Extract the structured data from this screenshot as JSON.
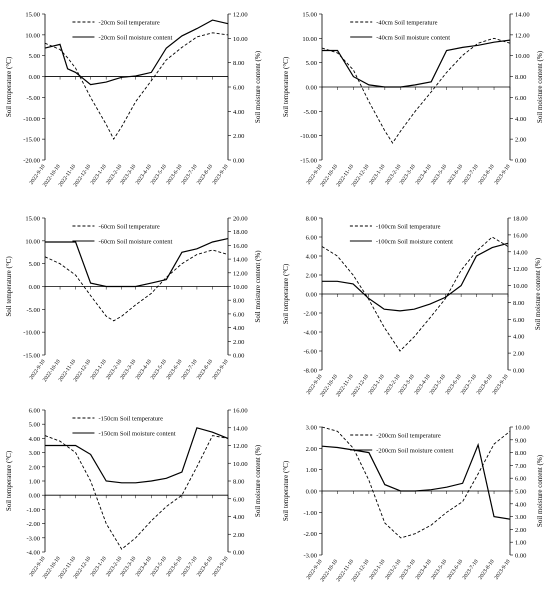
{
  "x_dates": [
    "2022-9-10",
    "2022-10-10",
    "2022-11-10",
    "2022-12-10",
    "2023-1-10",
    "2023-2-10",
    "2023-3-10",
    "2023-4-10",
    "2023-5-10",
    "2023-6-10",
    "2023-7-10",
    "2023-8-10",
    "2023-9-10"
  ],
  "chart_data": [
    {
      "type": "line",
      "depth": "20cm",
      "legend": [
        "-20cm Soil temperature",
        "-20cm Soil moisture content"
      ],
      "ylabel": "Soil temperature (°C)",
      "y2label": "Soil moisture content (%)",
      "ylim": [
        -20,
        15
      ],
      "y2lim": [
        0,
        12
      ],
      "yticks": [
        "15.00",
        "10.00",
        "5.00",
        "0.00",
        "-5.00",
        "-10.00",
        "-15.00",
        "-20.00"
      ],
      "y2ticks": [
        "12.00",
        "10.00",
        "8.00",
        "6.00",
        "4.00",
        "2.00",
        "0.00"
      ],
      "x": [
        "2022-9-10",
        "2022-10-10",
        "2022-10-25",
        "2022-11-10",
        "2022-12-10",
        "2023-1-10",
        "2023-1-25",
        "2023-2-10",
        "2023-3-10",
        "2023-4-10",
        "2023-5-10",
        "2023-6-10",
        "2023-7-10",
        "2023-8-10",
        "2023-9-10"
      ],
      "series": [
        {
          "name": "-20cm Soil temperature",
          "style": "dashed",
          "values": [
            8.0,
            6.5,
            4.5,
            2.0,
            -5.0,
            -11.5,
            -15.0,
            -12.0,
            -6.0,
            -1.0,
            4.0,
            7.0,
            9.5,
            10.5,
            10.0
          ]
        },
        {
          "name": "-20cm Soil moisture content",
          "style": "solid",
          "axis": "right",
          "values": [
            9.2,
            9.5,
            7.5,
            7.2,
            6.2,
            6.4,
            6.6,
            6.8,
            6.9,
            7.2,
            9.2,
            10.2,
            10.8,
            11.5,
            11.2
          ]
        }
      ]
    },
    {
      "type": "line",
      "depth": "40cm",
      "legend": [
        "-40cm Soil temperature",
        "-40cm Soil moisture content"
      ],
      "ylabel": "Soil temperature (°C)",
      "y2label": "Soil moisture content (%)",
      "ylim": [
        -15,
        15
      ],
      "y2lim": [
        0,
        14
      ],
      "yticks": [
        "15.00",
        "10.00",
        "5.00",
        "0.00",
        "-5.00",
        "-10.00",
        "-15.00"
      ],
      "y2ticks": [
        "14.00",
        "12.00",
        "10.00",
        "8.00",
        "6.00",
        "4.00",
        "2.00",
        "0.00"
      ],
      "x": [
        "2022-9-10",
        "2022-10-10",
        "2022-11-10",
        "2022-12-10",
        "2023-1-10",
        "2023-1-25",
        "2023-2-10",
        "2023-3-10",
        "2023-4-10",
        "2023-5-10",
        "2023-6-10",
        "2023-7-10",
        "2023-8-10",
        "2023-9-10"
      ],
      "series": [
        {
          "name": "-40cm Soil temperature",
          "style": "dashed",
          "values": [
            8.0,
            7.0,
            3.5,
            -3.0,
            -9.0,
            -11.5,
            -9.0,
            -5.0,
            -1.0,
            3.0,
            6.5,
            9.0,
            10.0,
            9.0
          ]
        },
        {
          "name": "-40cm Soil moisture content",
          "style": "solid",
          "axis": "right",
          "values": [
            10.5,
            10.5,
            8.0,
            7.2,
            7.0,
            7.0,
            7.0,
            7.2,
            7.5,
            10.5,
            10.8,
            11.0,
            11.3,
            11.5
          ]
        }
      ]
    },
    {
      "type": "line",
      "depth": "60cm",
      "legend": [
        "-60cm Soil temperature",
        "-60cm Soil moisture content"
      ],
      "ylabel": "Soil temperature (°C)",
      "y2label": "Soil moisture content (%)",
      "ylim": [
        -15,
        15
      ],
      "y2lim": [
        0,
        20
      ],
      "yticks": [
        "15.00",
        "10.00",
        "5.00",
        "0.00",
        "-5.00",
        "-10.00",
        "-15.00"
      ],
      "y2ticks": [
        "20.00",
        "18.00",
        "16.00",
        "14.00",
        "12.00",
        "10.00",
        "8.00",
        "6.00",
        "4.00",
        "2.00",
        "0.00"
      ],
      "x": [
        "2022-9-10",
        "2022-10-10",
        "2022-11-10",
        "2022-12-10",
        "2023-1-10",
        "2023-1-25",
        "2023-2-10",
        "2023-3-10",
        "2023-4-10",
        "2023-5-10",
        "2023-6-10",
        "2023-7-10",
        "2023-8-10",
        "2023-9-10"
      ],
      "series": [
        {
          "name": "-60cm Soil temperature",
          "style": "dashed",
          "values": [
            6.5,
            5.0,
            2.5,
            -2.0,
            -6.5,
            -7.5,
            -6.5,
            -4.0,
            -1.5,
            2.0,
            5.0,
            7.0,
            8.0,
            7.0
          ]
        },
        {
          "name": "-60cm Soil moisture content",
          "style": "solid",
          "axis": "right",
          "values": [
            16.5,
            16.5,
            16.5,
            10.5,
            10.0,
            10.0,
            10.0,
            10.0,
            10.5,
            11.0,
            15.0,
            15.5,
            16.5,
            17.0
          ]
        }
      ]
    },
    {
      "type": "line",
      "depth": "100cm",
      "legend": [
        "-100cm Soil temperature",
        "-100cm Soil moisture content"
      ],
      "ylabel": "Soil temperature (°C)",
      "y2label": "Soil moisture content (%)",
      "ylim": [
        -8,
        8
      ],
      "y2lim": [
        0,
        18
      ],
      "yticks": [
        "8.00",
        "6.00",
        "4.00",
        "2.00",
        "0.00",
        "-2.00",
        "-4.00",
        "-6.00",
        "-8.00"
      ],
      "y2ticks": [
        "18.00",
        "16.00",
        "14.00",
        "12.00",
        "10.00",
        "8.00",
        "6.00",
        "4.00",
        "2.00",
        "0.00"
      ],
      "x": [
        "2022-9-10",
        "2022-10-10",
        "2022-11-10",
        "2022-12-10",
        "2023-1-10",
        "2023-2-10",
        "2023-3-10",
        "2023-4-10",
        "2023-5-10",
        "2023-6-10",
        "2023-7-10",
        "2023-8-10",
        "2023-9-10"
      ],
      "series": [
        {
          "name": "-100cm Soil temperature",
          "style": "dashed",
          "values": [
            5.0,
            4.0,
            2.0,
            -0.5,
            -3.5,
            -6.0,
            -4.5,
            -2.5,
            -0.5,
            2.5,
            4.5,
            6.0,
            5.0
          ]
        },
        {
          "name": "-100cm Soil moisture content",
          "style": "solid",
          "axis": "right",
          "values": [
            10.5,
            10.5,
            10.2,
            8.5,
            7.2,
            7.0,
            7.2,
            7.8,
            8.6,
            10.0,
            13.5,
            14.5,
            15.0
          ]
        }
      ]
    },
    {
      "type": "line",
      "depth": "150cm",
      "legend": [
        "-150cm Soil temperature",
        "-150cm Soil moisture content"
      ],
      "ylabel": "Soil temperature (°C)",
      "y2label": "Soil moisture content (%)",
      "ylim": [
        -4,
        6
      ],
      "y2lim": [
        0,
        16
      ],
      "yticks": [
        "6.00",
        "5.00",
        "4.00",
        "3.00",
        "2.00",
        "1.00",
        "0.00",
        "-1.00",
        "-2.00",
        "-3.00",
        "-4.00"
      ],
      "y2ticks": [
        "16.00",
        "14.00",
        "12.00",
        "10.00",
        "8.00",
        "6.00",
        "4.00",
        "2.00",
        "0.00"
      ],
      "x": [
        "2022-9-10",
        "2022-10-10",
        "2022-11-10",
        "2022-12-10",
        "2023-1-10",
        "2023-2-10",
        "2023-3-10",
        "2023-4-10",
        "2023-5-10",
        "2023-6-10",
        "2023-7-10",
        "2023-8-10",
        "2023-9-10"
      ],
      "series": [
        {
          "name": "-150cm Soil temperature",
          "style": "dashed",
          "values": [
            4.2,
            3.8,
            3.0,
            1.0,
            -2.0,
            -3.8,
            -3.0,
            -1.8,
            -0.8,
            0.0,
            2.0,
            4.2,
            4.0
          ]
        },
        {
          "name": "-150cm Soil moisture content",
          "style": "solid",
          "axis": "right",
          "values": [
            12.0,
            12.0,
            12.0,
            11.0,
            8.0,
            7.8,
            7.8,
            8.0,
            8.3,
            9.0,
            14.0,
            13.5,
            12.8
          ]
        }
      ]
    },
    {
      "type": "line",
      "depth": "200cm",
      "legend": [
        "-200cm Soil temperature",
        "-200cm Soil moisture content"
      ],
      "ylabel": "Soil temperature (°C)",
      "y2label": "Soil moisture content (%)",
      "ylim": [
        -3,
        3
      ],
      "y2lim": [
        0,
        10
      ],
      "yticks": [
        "3.00",
        "2.00",
        "1.00",
        "0.00",
        "-1.00",
        "-2.00",
        "-3.00"
      ],
      "y2ticks": [
        "10.00",
        "9.00",
        "8.00",
        "7.00",
        "6.00",
        "5.00",
        "4.00",
        "3.00",
        "2.00",
        "1.00",
        "0.00"
      ],
      "x": [
        "2022-9-10",
        "2022-10-10",
        "2022-11-10",
        "2022-12-10",
        "2023-1-10",
        "2023-2-10",
        "2023-3-10",
        "2023-4-10",
        "2023-5-10",
        "2023-6-10",
        "2023-7-10",
        "2023-8-10",
        "2023-9-10"
      ],
      "series": [
        {
          "name": "-200cm Soil temperature",
          "style": "dashed",
          "values": [
            3.0,
            2.8,
            2.0,
            0.5,
            -1.5,
            -2.2,
            -2.0,
            -1.6,
            -1.0,
            -0.5,
            0.8,
            2.2,
            2.8
          ]
        },
        {
          "name": "-200cm Soil moisture content",
          "style": "solid",
          "axis": "right",
          "values": [
            8.5,
            8.4,
            8.2,
            8.0,
            5.5,
            5.0,
            5.0,
            5.1,
            5.3,
            5.6,
            8.6,
            3.0,
            2.8
          ]
        }
      ]
    }
  ]
}
